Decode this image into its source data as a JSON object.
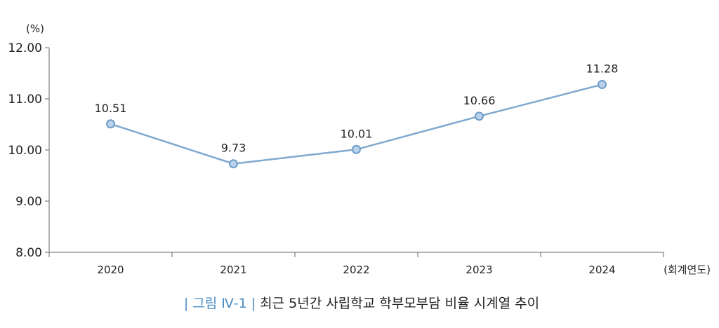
{
  "chart_data": {
    "type": "line",
    "title": "최근 5년간 사립학교 학부모부담 비율 시계열 추이",
    "figure_label": "그림 Ⅳ-1",
    "y_unit": "(%)",
    "x_unit": "(회계연도)",
    "ylim": [
      8.0,
      12.0
    ],
    "yticks": [
      "12.00",
      "11.00",
      "10.00",
      "9.00",
      "8.00"
    ],
    "ytick_values": [
      12,
      11,
      10,
      9,
      8
    ],
    "categories": [
      "2020",
      "2021",
      "2022",
      "2023",
      "2024"
    ],
    "values": [
      10.51,
      9.73,
      10.01,
      10.66,
      11.28
    ],
    "data_labels": [
      "10.51",
      "9.73",
      "10.01",
      "10.66",
      "11.28"
    ],
    "grid": false,
    "line_color": "#7fa9d0",
    "marker_fill": "#b9d1ea",
    "marker_stroke": "#6f9cc8",
    "axis_color": "#666666"
  }
}
